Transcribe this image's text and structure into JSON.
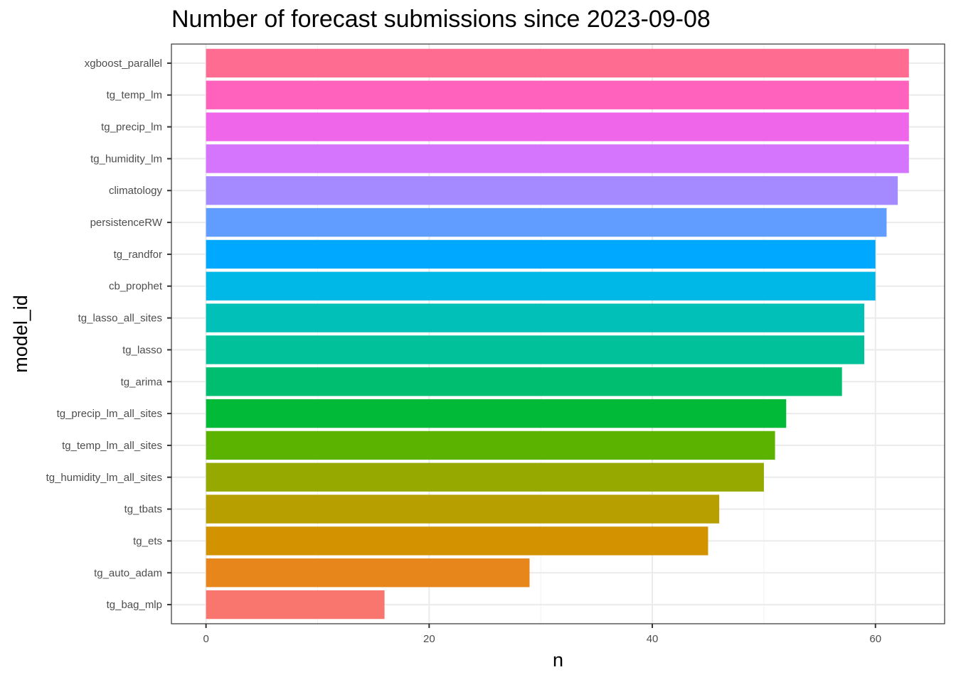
{
  "chart_data": {
    "type": "bar",
    "orientation": "horizontal",
    "title": "Number of forecast submissions since 2023-09-08",
    "xlabel": "n",
    "ylabel": "model_id",
    "xlim": [
      -3.1,
      66.2
    ],
    "x_ticks": [
      0,
      20,
      40,
      60
    ],
    "grid": true,
    "legend": "none",
    "categories": [
      "xgboost_parallel",
      "tg_temp_lm",
      "tg_precip_lm",
      "tg_humidity_lm",
      "climatology",
      "persistenceRW",
      "tg_randfor",
      "cb_prophet",
      "tg_lasso_all_sites",
      "tg_lasso",
      "tg_arima",
      "tg_precip_lm_all_sites",
      "tg_temp_lm_all_sites",
      "tg_humidity_lm_all_sites",
      "tg_tbats",
      "tg_ets",
      "tg_auto_adam",
      "tg_bag_mlp"
    ],
    "values": [
      63,
      63,
      63,
      63,
      62,
      61,
      60,
      60,
      59,
      59,
      57,
      52,
      51,
      50,
      46,
      45,
      29,
      16
    ],
    "colors": [
      "#FF6C91",
      "#FF62BC",
      "#F066EA",
      "#D575FE",
      "#A58AFF",
      "#619CFF",
      "#00A9FF",
      "#00B8E7",
      "#00C0B8",
      "#00C19A",
      "#00BE70",
      "#00BA38",
      "#5BB300",
      "#95A900",
      "#B79F00",
      "#D39200",
      "#E7861B",
      "#F8766D"
    ]
  }
}
